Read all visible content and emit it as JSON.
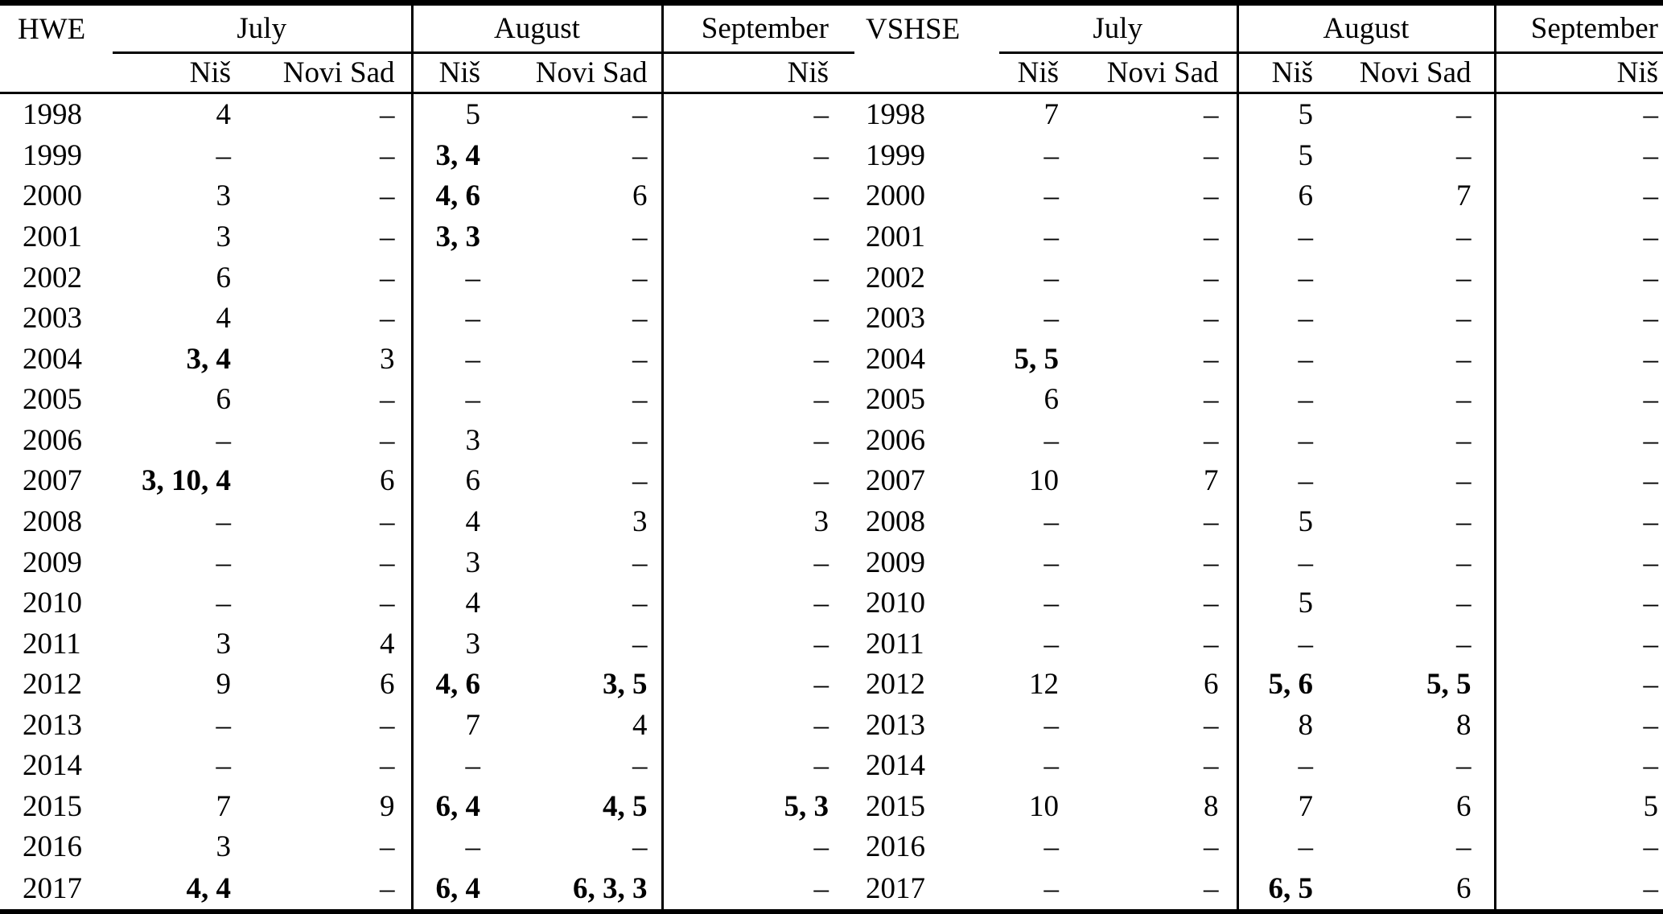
{
  "page": {
    "background": "#ffffff",
    "text_color": "#000000",
    "dash": "–"
  },
  "left_table": {
    "corner_label": "HWE",
    "month_groups": [
      {
        "label": "July",
        "span": 2
      },
      {
        "label": "August",
        "span": 2
      },
      {
        "label": "September",
        "span": 1
      }
    ],
    "subheaders": [
      "Niš",
      "Novi Sad",
      "Niš",
      "Novi Sad",
      "Niš"
    ]
  },
  "right_table": {
    "corner_label": "VSHSE",
    "month_groups": [
      {
        "label": "July",
        "span": 2
      },
      {
        "label": "August",
        "span": 2
      },
      {
        "label": "September",
        "span": 1
      }
    ],
    "subheaders": [
      "Niš",
      "Novi Sad",
      "Niš",
      "Novi Sad",
      "Niš"
    ]
  },
  "rows": [
    {
      "year": "1998",
      "hwe": [
        "4",
        "–",
        "5",
        "–",
        "–"
      ],
      "vshse": [
        "7",
        "–",
        "5",
        "–",
        "–"
      ]
    },
    {
      "year": "1999",
      "hwe": [
        "–",
        "–",
        {
          "v": "3, 4",
          "bold": true
        },
        "–",
        "–"
      ],
      "vshse": [
        "–",
        "–",
        "5",
        "–",
        "–"
      ]
    },
    {
      "year": "2000",
      "hwe": [
        "3",
        "–",
        {
          "v": "4, 6",
          "bold": true
        },
        "6",
        "–"
      ],
      "vshse": [
        "–",
        "–",
        "6",
        "7",
        "–"
      ]
    },
    {
      "year": "2001",
      "hwe": [
        "3",
        "–",
        {
          "v": "3, 3",
          "bold": true
        },
        "–",
        "–"
      ],
      "vshse": [
        "–",
        "–",
        "–",
        "–",
        "–"
      ]
    },
    {
      "year": "2002",
      "hwe": [
        "6",
        "–",
        "–",
        "–",
        "–"
      ],
      "vshse": [
        "–",
        "–",
        "–",
        "–",
        "–"
      ]
    },
    {
      "year": "2003",
      "hwe": [
        "4",
        "–",
        "–",
        "–",
        "–"
      ],
      "vshse": [
        "–",
        "–",
        "–",
        "–",
        "–"
      ]
    },
    {
      "year": "2004",
      "hwe": [
        {
          "v": "3, 4",
          "bold": true
        },
        "3",
        "–",
        "–",
        "–"
      ],
      "vshse": [
        {
          "v": "5, 5",
          "bold": true
        },
        "–",
        "–",
        "–",
        "–"
      ]
    },
    {
      "year": "2005",
      "hwe": [
        "6",
        "–",
        "–",
        "–",
        "–"
      ],
      "vshse": [
        "6",
        "–",
        "–",
        "–",
        "–"
      ]
    },
    {
      "year": "2006",
      "hwe": [
        "–",
        "–",
        "3",
        "–",
        "–"
      ],
      "vshse": [
        "–",
        "–",
        "–",
        "–",
        "–"
      ]
    },
    {
      "year": "2007",
      "hwe": [
        {
          "v": "3, 10, 4",
          "bold": true
        },
        "6",
        "6",
        "–",
        "–"
      ],
      "vshse": [
        "10",
        "7",
        "–",
        "–",
        "–"
      ]
    },
    {
      "year": "2008",
      "hwe": [
        "–",
        "–",
        "4",
        "3",
        "3"
      ],
      "vshse": [
        "–",
        "–",
        "5",
        "–",
        "–"
      ]
    },
    {
      "year": "2009",
      "hwe": [
        "–",
        "–",
        "3",
        "–",
        "–"
      ],
      "vshse": [
        "–",
        "–",
        "–",
        "–",
        "–"
      ]
    },
    {
      "year": "2010",
      "hwe": [
        "–",
        "–",
        "4",
        "–",
        "–"
      ],
      "vshse": [
        "–",
        "–",
        "5",
        "–",
        "–"
      ]
    },
    {
      "year": "2011",
      "hwe": [
        "3",
        "4",
        "3",
        "–",
        "–"
      ],
      "vshse": [
        "–",
        "–",
        "–",
        "–",
        "–"
      ]
    },
    {
      "year": "2012",
      "hwe": [
        "9",
        "6",
        {
          "v": "4, 6",
          "bold": true
        },
        {
          "v": "3, 5",
          "bold": true
        },
        "–"
      ],
      "vshse": [
        "12",
        "6",
        {
          "v": "5, 6",
          "bold": true
        },
        {
          "v": "5, 5",
          "bold": true
        },
        "–"
      ]
    },
    {
      "year": "2013",
      "hwe": [
        "–",
        "–",
        "7",
        "4",
        "–"
      ],
      "vshse": [
        "–",
        "–",
        "8",
        "8",
        "–"
      ]
    },
    {
      "year": "2014",
      "hwe": [
        "–",
        "–",
        "–",
        "–",
        "–"
      ],
      "vshse": [
        "–",
        "–",
        "–",
        "–",
        "–"
      ]
    },
    {
      "year": "2015",
      "hwe": [
        "7",
        "9",
        {
          "v": "6, 4",
          "bold": true
        },
        {
          "v": "4, 5",
          "bold": true
        },
        {
          "v": "5, 3",
          "bold": true
        }
      ],
      "vshse": [
        "10",
        "8",
        "7",
        "6",
        "5"
      ]
    },
    {
      "year": "2016",
      "hwe": [
        "3",
        "–",
        "–",
        "–",
        "–"
      ],
      "vshse": [
        "–",
        "–",
        "–",
        "–",
        "–"
      ]
    },
    {
      "year": "2017",
      "hwe": [
        {
          "v": "4, 4",
          "bold": true
        },
        "–",
        {
          "v": "6, 4",
          "bold": true
        },
        {
          "v": "6, 3, 3",
          "bold": true
        },
        "–"
      ],
      "vshse": [
        "–",
        "–",
        {
          "v": "6, 5",
          "bold": true
        },
        "6",
        "–"
      ]
    }
  ]
}
